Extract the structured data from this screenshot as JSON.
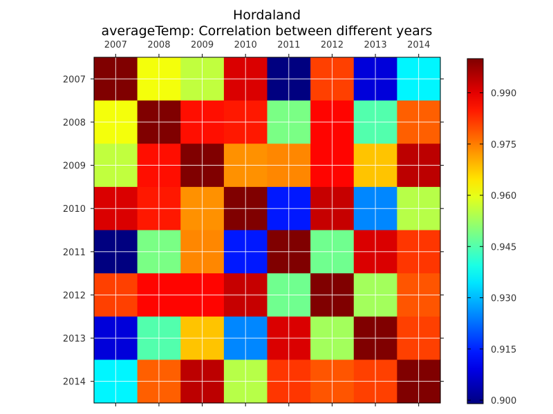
{
  "chart_data": {
    "type": "heatmap",
    "title": "Hordaland",
    "subtitle": "averageTemp: Correlation between different years",
    "x_categories": [
      "2007",
      "2008",
      "2009",
      "2010",
      "2011",
      "2012",
      "2013",
      "2014"
    ],
    "y_categories": [
      "2007",
      "2008",
      "2009",
      "2010",
      "2011",
      "2012",
      "2013",
      "2014"
    ],
    "values": [
      [
        1.0,
        0.961,
        0.956,
        0.991,
        0.899,
        0.981,
        0.908,
        0.936
      ],
      [
        0.961,
        1.0,
        0.986,
        0.985,
        0.949,
        0.987,
        0.945,
        0.978
      ],
      [
        0.956,
        0.986,
        1.0,
        0.973,
        0.974,
        0.987,
        0.968,
        0.994
      ],
      [
        0.991,
        0.985,
        0.973,
        1.0,
        0.914,
        0.993,
        0.925,
        0.955
      ],
      [
        0.899,
        0.949,
        0.974,
        0.914,
        1.0,
        0.948,
        0.991,
        0.982
      ],
      [
        0.981,
        0.987,
        0.987,
        0.993,
        0.948,
        1.0,
        0.953,
        0.979
      ],
      [
        0.908,
        0.945,
        0.968,
        0.925,
        0.991,
        0.953,
        1.0,
        0.981
      ],
      [
        0.936,
        0.978,
        0.994,
        0.955,
        0.982,
        0.979,
        0.981,
        1.0
      ]
    ],
    "colormap": "jet",
    "colorbar": {
      "min": 0.899,
      "max": 1.0,
      "ticks": [
        0.9,
        0.915,
        0.93,
        0.945,
        0.96,
        0.975,
        0.99
      ],
      "tick_labels": [
        "0.900",
        "0.915",
        "0.930",
        "0.945",
        "0.960",
        "0.975",
        "0.990"
      ]
    },
    "grid": true,
    "x_axis_position": "top"
  }
}
